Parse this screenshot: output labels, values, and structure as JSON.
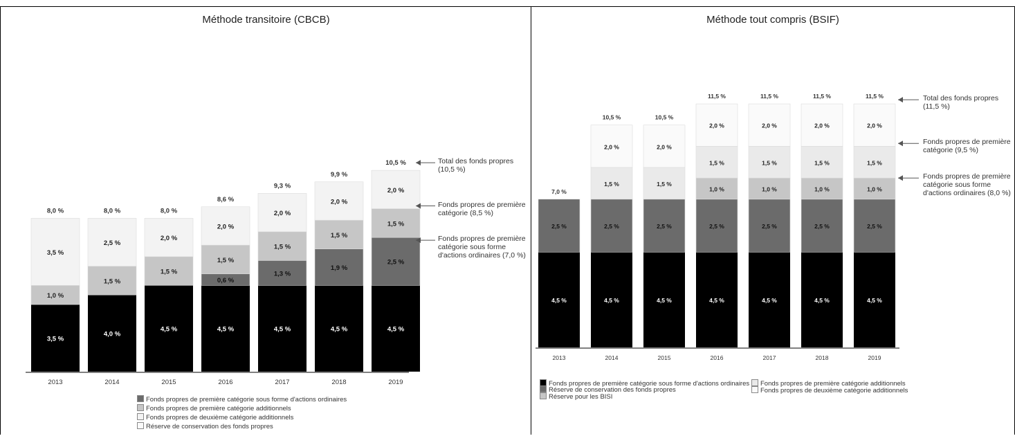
{
  "chart_data": [
    {
      "type": "bar",
      "stacked": true,
      "title": "Méthode transitoire (CBCB)",
      "categories": [
        "2013",
        "2014",
        "2015",
        "2016",
        "2017",
        "2018",
        "2019"
      ],
      "ylim": [
        0,
        11
      ],
      "grid": false,
      "legend_position": "bottom",
      "series": [
        {
          "name": "",
          "color": "#000000",
          "text_color": "#ffffff",
          "values": [
            3.5,
            4.0,
            4.5,
            4.5,
            4.5,
            4.5,
            4.5
          ],
          "labels": [
            "3,5 %",
            "4,0 %",
            "4,5 %",
            "4,5 %",
            "4,5 %",
            "4,5 %",
            "4,5 %"
          ]
        },
        {
          "name": "",
          "color": "#6b6b6b",
          "text_color": "#111111",
          "values": [
            0,
            0,
            0,
            0.6,
            1.3,
            1.9,
            2.5
          ],
          "labels": [
            "",
            "",
            "",
            "0,6 %",
            "1,3 %",
            "1,9 %",
            "2,5 %"
          ]
        },
        {
          "name": "",
          "color": "#c6c6c6",
          "text_color": "#222222",
          "values": [
            1.0,
            1.5,
            1.5,
            1.5,
            1.5,
            1.5,
            1.5
          ],
          "labels": [
            "1,0 %",
            "1,5 %",
            "1,5 %",
            "1,5 %",
            "1,5 %",
            "1,5 %",
            "1,5 %"
          ]
        },
        {
          "name": "",
          "color": "#f3f3f3",
          "text_color": "#222222",
          "values": [
            3.5,
            2.5,
            2.0,
            2.0,
            2.0,
            2.0,
            2.0
          ],
          "labels": [
            "3,5 %",
            "2,5 %",
            "2,0 %",
            "2,0 %",
            "2,0 %",
            "2,0 %",
            "2,0 %"
          ]
        }
      ],
      "totals": [
        "8,0 %",
        "8,0 %",
        "8,0 %",
        "8,6 %",
        "9,3 %",
        "9,9 %",
        "10,5 %"
      ],
      "annotations": [
        {
          "text": "Total des fonds propres (10,5 %)",
          "target_value": 10.5
        },
        {
          "text": "Fonds propres de première catégorie (8,5 %)",
          "target_value": 8.5
        },
        {
          "text": "Fonds propres de première catégorie sous forme d'actions ordinaires (7,0 %)",
          "target_value": 7.0
        }
      ],
      "legend": [
        "Fonds propres de première catégorie sous forme d'actions ordinaires",
        "Fonds propres de première catégorie additionnels",
        "Fonds propres de deuxième catégorie additionnels",
        "Réserve de conservation des fonds propres"
      ]
    },
    {
      "type": "bar",
      "stacked": true,
      "title": "Méthode tout compris (BSIF)",
      "categories": [
        "2013",
        "2014",
        "2015",
        "2016",
        "2017",
        "2018",
        "2019"
      ],
      "ylim": [
        0,
        11.5
      ],
      "grid": false,
      "legend_position": "bottom",
      "series": [
        {
          "name": "",
          "color": "#000000",
          "text_color": "#ffffff",
          "values": [
            4.5,
            4.5,
            4.5,
            4.5,
            4.5,
            4.5,
            4.5
          ],
          "labels": [
            "4,5 %",
            "4,5 %",
            "4,5 %",
            "4,5 %",
            "4,5 %",
            "4,5 %",
            "4,5 %"
          ]
        },
        {
          "name": "",
          "color": "#6b6b6b",
          "text_color": "#111111",
          "values": [
            2.5,
            2.5,
            2.5,
            2.5,
            2.5,
            2.5,
            2.5
          ],
          "labels": [
            "2,5 %",
            "2,5 %",
            "2,5 %",
            "2,5 %",
            "2,5 %",
            "2,5 %",
            "2,5 %"
          ]
        },
        {
          "name": "",
          "color": "#c6c6c6",
          "text_color": "#222222",
          "values": [
            0,
            0,
            0,
            1.0,
            1.0,
            1.0,
            1.0
          ],
          "labels": [
            "",
            "",
            "",
            "1,0 %",
            "1,0 %",
            "1,0 %",
            "1,0 %"
          ]
        },
        {
          "name": "",
          "color": "#eaeaea",
          "text_color": "#222222",
          "values": [
            0,
            1.5,
            1.5,
            1.5,
            1.5,
            1.5,
            1.5
          ],
          "labels": [
            "",
            "1,5 %",
            "1,5 %",
            "1,5 %",
            "1,5 %",
            "1,5 %",
            "1,5 %"
          ]
        },
        {
          "name": "",
          "color": "#fafafa",
          "text_color": "#222222",
          "values": [
            0,
            2.0,
            2.0,
            2.0,
            2.0,
            2.0,
            2.0
          ],
          "labels": [
            "",
            "2,0 %",
            "2,0 %",
            "2,0 %",
            "2,0 %",
            "2,0 %",
            "2,0 %"
          ]
        }
      ],
      "totals": [
        "7,0 %",
        "10,5 %",
        "10,5 %",
        "11,5 %",
        "11,5 %",
        "11,5 %",
        "11,5 %"
      ],
      "annotations": [
        {
          "text": "Total des fonds propres (11,5 %)",
          "target_value": 11.5
        },
        {
          "text": "Fonds propres de première catégorie (9,5 %)",
          "target_value": 9.5
        },
        {
          "text": "Fonds propres de première catégorie sous forme d'actions ordinaires (8,0 %)",
          "target_value": 8.0
        }
      ],
      "legend": [
        "Fonds propres de première catégorie sous forme d'actions ordinaires",
        "Réserve de conservation des fonds propres",
        "Réserve pour les BISI",
        "Fonds propres de première catégorie additionnels",
        "Fonds propres de deuxième catégorie additionnels"
      ]
    }
  ]
}
